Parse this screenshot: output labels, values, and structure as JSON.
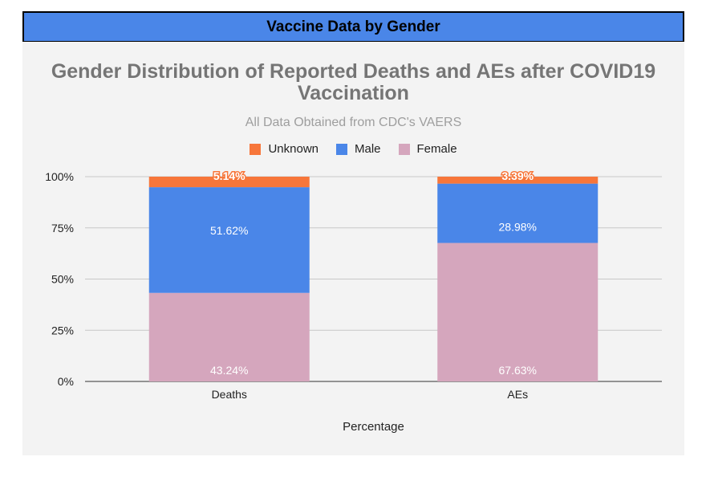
{
  "header": {
    "title": "Vaccine Data by Gender"
  },
  "colors": {
    "unknown": "#f7763a",
    "male": "#4a86e8",
    "female": "#d5a6bd"
  },
  "chart_data": {
    "type": "bar",
    "stacked": true,
    "percent_stacked": true,
    "title": "Gender Distribution of Reported Deaths and AEs after COVID19 Vaccination",
    "subtitle": "All Data Obtained from CDC's VAERS",
    "xlabel": "Percentage",
    "ylabel": "",
    "categories": [
      "Deaths",
      "AEs"
    ],
    "series": [
      {
        "name": "Female",
        "values": [
          43.24,
          67.63
        ],
        "labels": [
          "43.24%",
          "67.63%"
        ]
      },
      {
        "name": "Male",
        "values": [
          51.62,
          28.98
        ],
        "labels": [
          "51.62%",
          "28.98%"
        ]
      },
      {
        "name": "Unknown",
        "values": [
          5.14,
          3.39
        ],
        "labels": [
          "5.14%",
          "3.39%"
        ]
      }
    ],
    "legend_order": [
      "Unknown",
      "Male",
      "Female"
    ],
    "legend_position": "top",
    "y_ticks": [
      "0%",
      "25%",
      "50%",
      "75%",
      "100%"
    ],
    "ylim": [
      0,
      100
    ],
    "grid": true
  }
}
